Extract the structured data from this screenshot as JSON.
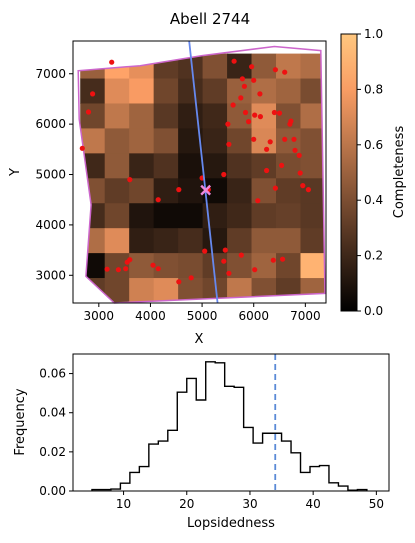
{
  "chart_data": [
    {
      "type": "heatmap",
      "title": "Abell 2744",
      "xlabel": "X",
      "ylabel": "Y",
      "xlim": [
        2500,
        7400
      ],
      "ylim": [
        2450,
        7650
      ],
      "xticks": [
        3000,
        4000,
        5000,
        6000,
        7000
      ],
      "yticks": [
        3000,
        4000,
        5000,
        6000,
        7000
      ],
      "grid": {
        "x0": 2640,
        "x1": 7380,
        "y0": 2450,
        "y1": 7400,
        "cols": 10,
        "rows": 10,
        "values": [
          [
            0.48,
            0.82,
            0.72,
            0.3,
            0.25,
            0.4,
            0.18,
            0.45,
            0.6,
            0.55
          ],
          [
            0.22,
            0.7,
            0.78,
            0.35,
            0.22,
            0.3,
            0.48,
            0.55,
            0.5,
            0.38
          ],
          [
            0.35,
            0.6,
            0.5,
            0.28,
            0.15,
            0.2,
            0.45,
            0.7,
            0.4,
            0.55
          ],
          [
            0.6,
            0.45,
            0.5,
            0.4,
            0.12,
            0.18,
            0.35,
            0.68,
            0.45,
            0.4
          ],
          [
            0.2,
            0.45,
            0.18,
            0.25,
            0.08,
            0.12,
            0.25,
            0.3,
            0.38,
            0.4
          ],
          [
            0.4,
            0.3,
            0.35,
            0.15,
            0.1,
            0.05,
            0.18,
            0.4,
            0.3,
            0.28
          ],
          [
            0.22,
            0.35,
            0.1,
            0.05,
            0.05,
            0.15,
            0.2,
            0.3,
            0.32,
            0.28
          ],
          [
            0.55,
            0.7,
            0.15,
            0.18,
            0.22,
            0.12,
            0.3,
            0.45,
            0.45,
            0.3
          ],
          [
            0.05,
            0.35,
            0.45,
            0.4,
            0.38,
            0.3,
            0.4,
            0.5,
            0.35,
            0.9
          ],
          [
            0.3,
            0.35,
            0.65,
            0.7,
            0.4,
            0.35,
            0.6,
            0.4,
            0.3,
            0.5
          ]
        ]
      },
      "footprint": [
        [
          2600,
          7060
        ],
        [
          3800,
          7160
        ],
        [
          5000,
          7360
        ],
        [
          6400,
          7540
        ],
        [
          7300,
          7460
        ],
        [
          7380,
          2640
        ],
        [
          3300,
          2450
        ],
        [
          2750,
          2980
        ],
        [
          2850,
          4400
        ],
        [
          2620,
          6100
        ]
      ],
      "footprint_color": "#cc66cc",
      "galaxies": [
        [
          3250,
          7230
        ],
        [
          2880,
          6600
        ],
        [
          2800,
          6240
        ],
        [
          2680,
          5520
        ],
        [
          3600,
          4900
        ],
        [
          3380,
          3110
        ],
        [
          3160,
          3120
        ],
        [
          3520,
          3130
        ],
        [
          3550,
          3260
        ],
        [
          3600,
          3310
        ],
        [
          4050,
          3200
        ],
        [
          4150,
          4500
        ],
        [
          4550,
          4700
        ],
        [
          5000,
          4930
        ],
        [
          5120,
          4700
        ],
        [
          4790,
          2950
        ],
        [
          5420,
          5000
        ],
        [
          5520,
          5600
        ],
        [
          5500,
          6000
        ],
        [
          5600,
          6380
        ],
        [
          5620,
          7250
        ],
        [
          5960,
          7140
        ],
        [
          5780,
          6900
        ],
        [
          5820,
          6750
        ],
        [
          5750,
          6520
        ],
        [
          5840,
          6230
        ],
        [
          5900,
          6050
        ],
        [
          6000,
          5700
        ],
        [
          6020,
          6180
        ],
        [
          6120,
          6600
        ],
        [
          6130,
          6150
        ],
        [
          6250,
          5500
        ],
        [
          6320,
          5650
        ],
        [
          6400,
          6230
        ],
        [
          6420,
          7080
        ],
        [
          6500,
          6220
        ],
        [
          6600,
          7030
        ],
        [
          6700,
          6000
        ],
        [
          6720,
          6060
        ],
        [
          6780,
          5700
        ],
        [
          6800,
          5480
        ],
        [
          6880,
          5380
        ],
        [
          6900,
          5030
        ],
        [
          6950,
          4780
        ],
        [
          7060,
          4700
        ],
        [
          6420,
          4730
        ],
        [
          6540,
          5180
        ],
        [
          6600,
          5700
        ],
        [
          6000,
          6870
        ],
        [
          6250,
          5080
        ],
        [
          6080,
          4480
        ],
        [
          5760,
          3400
        ],
        [
          6020,
          3110
        ],
        [
          5520,
          3040
        ],
        [
          5420,
          3280
        ],
        [
          5450,
          3500
        ],
        [
          5050,
          3480
        ],
        [
          6380,
          3300
        ],
        [
          6560,
          3320
        ],
        [
          4150,
          3130
        ],
        [
          4550,
          2870
        ]
      ],
      "galaxy_color": "#ee1111",
      "line": {
        "points": [
          [
            4750,
            7650
          ],
          [
            5300,
            2450
          ]
        ],
        "color": "#6688ee"
      },
      "center_marker": {
        "x": 5070,
        "y": 4690,
        "color": "#ee88dd"
      },
      "colorbar": {
        "label": "Completeness",
        "min": 0.0,
        "max": 1.0,
        "ticks": [
          0.0,
          0.2,
          0.4,
          0.6,
          0.8,
          1.0
        ],
        "colormap": "copper"
      }
    },
    {
      "type": "step",
      "title": "",
      "xlabel": "Lopsidedness",
      "ylabel": "Frequency",
      "xlim": [
        2,
        52
      ],
      "ylim": [
        0,
        0.07
      ],
      "xticks": [
        10,
        20,
        30,
        40,
        50
      ],
      "yticks": [
        0.0,
        0.02,
        0.04,
        0.06
      ],
      "bin_edges": [
        5,
        6.5,
        8,
        9.5,
        11,
        12.5,
        14,
        15.5,
        17,
        18.5,
        20,
        21.5,
        23,
        24.5,
        26,
        27.5,
        29,
        30.5,
        32,
        33.5,
        35,
        36.5,
        38,
        39.5,
        41,
        42.5,
        44,
        45.5,
        47,
        48.5
      ],
      "counts": [
        0.0007,
        0.0007,
        0.001,
        0.004,
        0.0095,
        0.0125,
        0.024,
        0.0255,
        0.031,
        0.0505,
        0.0575,
        0.0465,
        0.066,
        0.0655,
        0.0535,
        0.053,
        0.0325,
        0.0245,
        0.0295,
        0.0295,
        0.0255,
        0.0195,
        0.0095,
        0.0125,
        0.013,
        0.0042,
        0.0025,
        0.0004,
        0.0007
      ],
      "line_color": "#000000",
      "dashed_line": {
        "x": 34.0,
        "color": "#5a8ad6"
      }
    }
  ]
}
